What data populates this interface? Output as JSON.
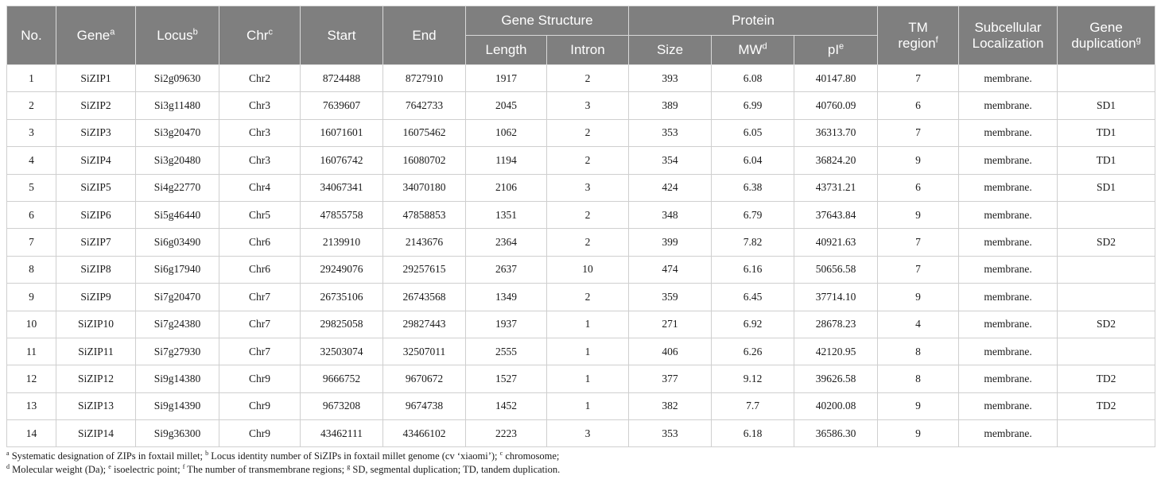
{
  "headers": {
    "no": "No.",
    "gene": "Gene",
    "gene_sup": "a",
    "locus": "Locus",
    "locus_sup": "b",
    "chr": "Chr",
    "chr_sup": "c",
    "start": "Start",
    "end": "End",
    "gene_structure": "Gene Structure",
    "length": "Length",
    "intron": "Intron",
    "protein": "Protein",
    "size": "Size",
    "mw": "MW",
    "mw_sup": "d",
    "pi": "pI",
    "pi_sup": "e",
    "tm_line1": "TM",
    "tm_line2": "region",
    "tm_sup": "f",
    "subcell_line1": "Subcellular",
    "subcell_line2": "Localization",
    "dup_line1": "Gene",
    "dup_line2": "duplication",
    "dup_sup": "g"
  },
  "rows": [
    [
      "1",
      "SiZIP1",
      "Si2g09630",
      "Chr2",
      "8724488",
      "8727910",
      "1917",
      "2",
      "393",
      "6.08",
      "40147.80",
      "7",
      "membrane.",
      ""
    ],
    [
      "2",
      "SiZIP2",
      "Si3g11480",
      "Chr3",
      "7639607",
      "7642733",
      "2045",
      "3",
      "389",
      "6.99",
      "40760.09",
      "6",
      "membrane.",
      "SD1"
    ],
    [
      "3",
      "SiZIP3",
      "Si3g20470",
      "Chr3",
      "16071601",
      "16075462",
      "1062",
      "2",
      "353",
      "6.05",
      "36313.70",
      "7",
      "membrane.",
      "TD1"
    ],
    [
      "4",
      "SiZIP4",
      "Si3g20480",
      "Chr3",
      "16076742",
      "16080702",
      "1194",
      "2",
      "354",
      "6.04",
      "36824.20",
      "9",
      "membrane.",
      "TD1"
    ],
    [
      "5",
      "SiZIP5",
      "Si4g22770",
      "Chr4",
      "34067341",
      "34070180",
      "2106",
      "3",
      "424",
      "6.38",
      "43731.21",
      "6",
      "membrane.",
      "SD1"
    ],
    [
      "6",
      "SiZIP6",
      "Si5g46440",
      "Chr5",
      "47855758",
      "47858853",
      "1351",
      "2",
      "348",
      "6.79",
      "37643.84",
      "9",
      "membrane.",
      ""
    ],
    [
      "7",
      "SiZIP7",
      "Si6g03490",
      "Chr6",
      "2139910",
      "2143676",
      "2364",
      "2",
      "399",
      "7.82",
      "40921.63",
      "7",
      "membrane.",
      "SD2"
    ],
    [
      "8",
      "SiZIP8",
      "Si6g17940",
      "Chr6",
      "29249076",
      "29257615",
      "2637",
      "10",
      "474",
      "6.16",
      "50656.58",
      "7",
      "membrane.",
      ""
    ],
    [
      "9",
      "SiZIP9",
      "Si7g20470",
      "Chr7",
      "26735106",
      "26743568",
      "1349",
      "2",
      "359",
      "6.45",
      "37714.10",
      "9",
      "membrane.",
      ""
    ],
    [
      "10",
      "SiZIP10",
      "Si7g24380",
      "Chr7",
      "29825058",
      "29827443",
      "1937",
      "1",
      "271",
      "6.92",
      "28678.23",
      "4",
      "membrane.",
      "SD2"
    ],
    [
      "11",
      "SiZIP11",
      "Si7g27930",
      "Chr7",
      "32503074",
      "32507011",
      "2555",
      "1",
      "406",
      "6.26",
      "42120.95",
      "8",
      "membrane.",
      ""
    ],
    [
      "12",
      "SiZIP12",
      "Si9g14380",
      "Chr9",
      "9666752",
      "9670672",
      "1527",
      "1",
      "377",
      "9.12",
      "39626.58",
      "8",
      "membrane.",
      "TD2"
    ],
    [
      "13",
      "SiZIP13",
      "Si9g14390",
      "Chr9",
      "9673208",
      "9674738",
      "1452",
      "1",
      "382",
      "7.7",
      "40200.08",
      "9",
      "membrane.",
      "TD2"
    ],
    [
      "14",
      "SiZIP14",
      "Si9g36300",
      "Chr9",
      "43462111",
      "43466102",
      "2223",
      "3",
      "353",
      "6.18",
      "36586.30",
      "9",
      "membrane.",
      ""
    ]
  ],
  "footnotes": {
    "a": "a",
    "a_text": " Systematic designation of ZIPs in foxtail millet; ",
    "b": "b",
    "b_text": " Locus identity number of SiZIPs in foxtail millet genome (cv ‘xiaomi’); ",
    "c": "c",
    "c_text": " chromosome;",
    "d": "d",
    "d_text": " Molecular weight (Da); ",
    "e": "e",
    "e_text": " isoelectric point; ",
    "f": "f",
    "f_text": " The number of transmembrane regions; ",
    "g": "g",
    "g_text": " SD, segmental duplication; TD, tandem duplication."
  }
}
